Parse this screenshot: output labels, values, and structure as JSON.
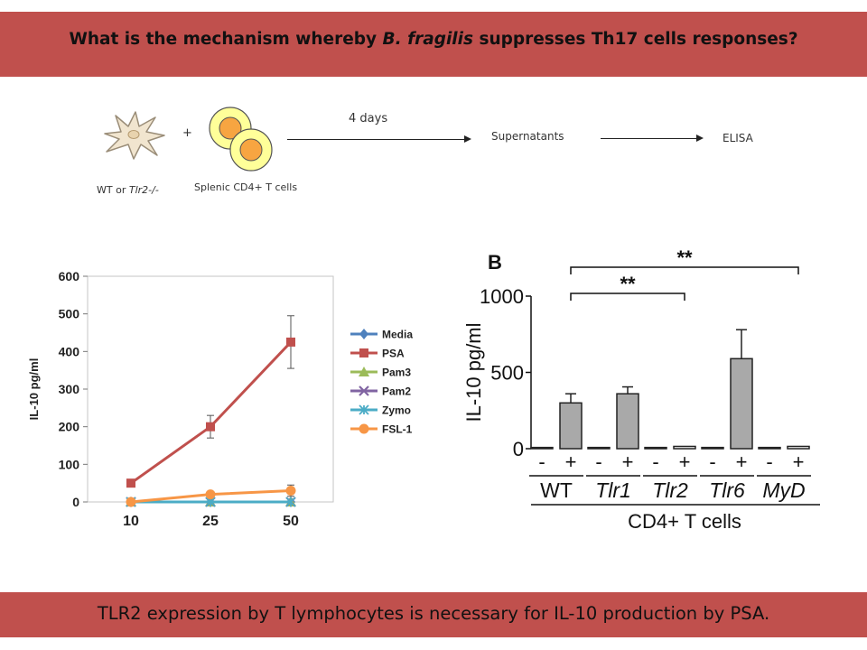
{
  "header": {
    "title_prefix": "What is the mechanism whereby ",
    "title_italic": "B. fragilis",
    "title_suffix": " suppresses Th17 cells responses?"
  },
  "schema": {
    "cell1_label_prefix": "WT or ",
    "cell1_label_italic": "Tlr2-/-",
    "plus": "+",
    "cell2_label": "Splenic CD4+ T cells",
    "duration": "4 days",
    "step2": "Supernatants",
    "step3": "ELISA"
  },
  "footer": {
    "text": "TLR2 expression by T lymphocytes is necessary for IL-10 production by PSA."
  },
  "colors": {
    "banner": "#c0504d",
    "media": "#4f81bd",
    "psa": "#c0504d",
    "pam3": "#9bbb59",
    "pam2": "#8064a2",
    "zymo": "#4bacc6",
    "fsl1": "#f79646",
    "bar_fill": "#a9a9a9"
  },
  "chart_data": [
    {
      "type": "line",
      "xlabel": "",
      "ylabel": "IL-10 pg/ml",
      "x": [
        "10",
        "25",
        "50"
      ],
      "ylim": [
        0,
        600
      ],
      "yticks": [
        0,
        100,
        200,
        300,
        400,
        500,
        600
      ],
      "legend_placement": "right",
      "series": [
        {
          "name": "Media",
          "values": [
            0,
            0,
            0
          ],
          "marker": "diamond",
          "color": "#4f81bd"
        },
        {
          "name": "PSA",
          "values": [
            50,
            200,
            425
          ],
          "errors": [
            0,
            30,
            70
          ],
          "marker": "square",
          "color": "#c0504d"
        },
        {
          "name": "Pam3",
          "values": [
            0,
            0,
            0
          ],
          "marker": "triangle",
          "color": "#9bbb59"
        },
        {
          "name": "Pam2",
          "values": [
            0,
            0,
            0
          ],
          "marker": "x",
          "color": "#8064a2"
        },
        {
          "name": "Zymo",
          "values": [
            0,
            0,
            0
          ],
          "marker": "star",
          "color": "#4bacc6"
        },
        {
          "name": "FSL-1",
          "values": [
            0,
            20,
            30
          ],
          "errors": [
            0,
            5,
            15
          ],
          "marker": "circle",
          "color": "#f79646"
        }
      ]
    },
    {
      "type": "bar",
      "panel_label": "B",
      "ylabel": "IL-10 pg/ml",
      "xlabel": "CD4+ T cells",
      "ylim": [
        0,
        1000
      ],
      "yticks": [
        0,
        500,
        1000
      ],
      "groups": [
        "WT",
        "Tlr1",
        "Tlr2",
        "Tlr6",
        "MyD"
      ],
      "groups_italic": [
        false,
        true,
        true,
        true,
        true
      ],
      "conditions": [
        "-",
        "+"
      ],
      "values": [
        [
          8,
          300
        ],
        [
          8,
          360
        ],
        [
          8,
          15
        ],
        [
          8,
          590
        ],
        [
          8,
          15
        ]
      ],
      "errors": [
        [
          0,
          60
        ],
        [
          0,
          45
        ],
        [
          0,
          0
        ],
        [
          0,
          190
        ],
        [
          0,
          0
        ]
      ],
      "significance": [
        {
          "from": "WT +",
          "to": "Tlr2 +",
          "label": "**"
        },
        {
          "from": "WT +",
          "to": "MyD +",
          "label": "**"
        }
      ]
    }
  ]
}
